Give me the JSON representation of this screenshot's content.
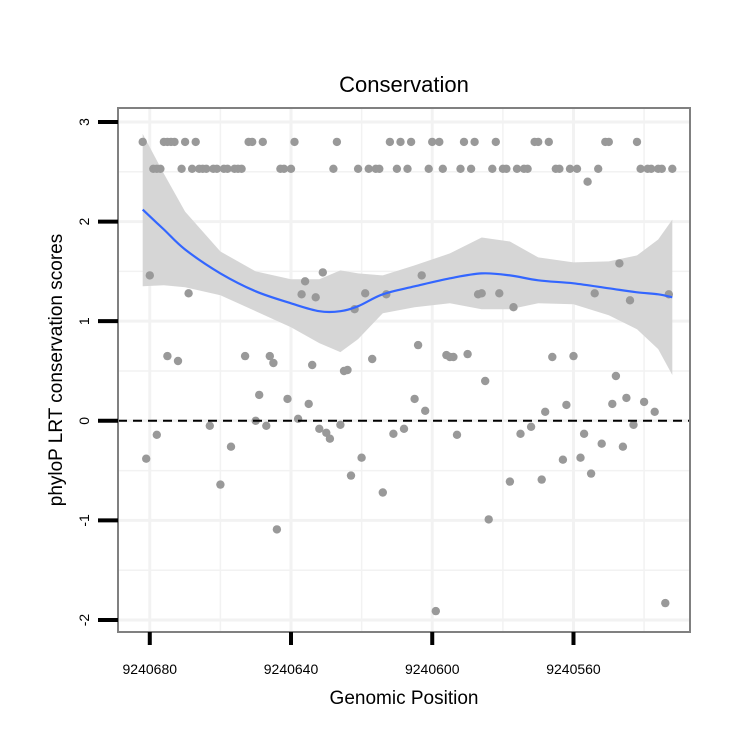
{
  "chart_data": {
    "type": "scatter",
    "title": "Conservation",
    "xlabel": "Genomic Position",
    "ylabel": "phyloP LRT conservation scores",
    "xlim": [
      9240527,
      9240689
    ],
    "ylim": [
      -2.12,
      3.14
    ],
    "x_reversed": true,
    "x_ticks": [
      9240680,
      9240640,
      9240600,
      9240560
    ],
    "x_tick_labels": [
      "9240680",
      "9240640",
      "9240600",
      "9240560"
    ],
    "y_ticks": [
      -2,
      -1,
      0,
      1,
      2,
      3
    ],
    "y_tick_labels": [
      "-2",
      "-1",
      "0",
      "1",
      "2",
      "3"
    ],
    "grid": true,
    "reference_line": {
      "y": 0,
      "style": "dashed"
    },
    "colors": {
      "points": "#999999",
      "smooth_line": "#3366ff",
      "ribbon": "#d4d4d4",
      "panel_border": "#808080",
      "grid": "#f2f2f2",
      "reference_line": "#000000"
    },
    "points": [
      [
        9240682,
        2.8
      ],
      [
        9240681,
        -0.38
      ],
      [
        9240680,
        1.46
      ],
      [
        9240679,
        2.53
      ],
      [
        9240678,
        -0.14
      ],
      [
        9240678,
        2.53
      ],
      [
        9240677,
        2.53
      ],
      [
        9240676,
        2.8
      ],
      [
        9240675,
        0.65
      ],
      [
        9240675,
        2.8
      ],
      [
        9240674,
        2.8
      ],
      [
        9240673,
        2.8
      ],
      [
        9240672,
        0.6
      ],
      [
        9240671,
        2.53
      ],
      [
        9240670,
        2.8
      ],
      [
        9240669,
        1.28
      ],
      [
        9240668,
        2.53
      ],
      [
        9240667,
        2.8
      ],
      [
        9240666,
        2.53
      ],
      [
        9240665,
        2.53
      ],
      [
        9240664,
        2.53
      ],
      [
        9240663,
        -0.05
      ],
      [
        9240662,
        2.53
      ],
      [
        9240661,
        2.53
      ],
      [
        9240660,
        -0.64
      ],
      [
        9240659,
        2.53
      ],
      [
        9240658,
        2.53
      ],
      [
        9240657,
        -0.26
      ],
      [
        9240656,
        2.53
      ],
      [
        9240655,
        2.53
      ],
      [
        9240654,
        2.53
      ],
      [
        9240653,
        0.65
      ],
      [
        9240652,
        2.8
      ],
      [
        9240651,
        2.8
      ],
      [
        9240650,
        0.0
      ],
      [
        9240649,
        0.26
      ],
      [
        9240648,
        2.8
      ],
      [
        9240647,
        -0.05
      ],
      [
        9240646,
        0.65
      ],
      [
        9240645,
        0.58
      ],
      [
        9240644,
        -1.09
      ],
      [
        9240643,
        2.53
      ],
      [
        9240642,
        2.53
      ],
      [
        9240641,
        0.22
      ],
      [
        9240640,
        2.53
      ],
      [
        9240639,
        2.8
      ],
      [
        9240638,
        0.02
      ],
      [
        9240637,
        1.27
      ],
      [
        9240636,
        1.4
      ],
      [
        9240635,
        0.17
      ],
      [
        9240634,
        0.56
      ],
      [
        9240633,
        1.24
      ],
      [
        9240632,
        -0.08
      ],
      [
        9240631,
        1.49
      ],
      [
        9240630,
        -0.12
      ],
      [
        9240629,
        -0.18
      ],
      [
        9240628,
        2.53
      ],
      [
        9240627,
        2.8
      ],
      [
        9240626,
        -0.04
      ],
      [
        9240625,
        0.5
      ],
      [
        9240624,
        0.51
      ],
      [
        9240623,
        -0.55
      ],
      [
        9240622,
        1.12
      ],
      [
        9240621,
        2.53
      ],
      [
        9240620,
        -0.37
      ],
      [
        9240619,
        1.28
      ],
      [
        9240618,
        2.53
      ],
      [
        9240617,
        0.62
      ],
      [
        9240616,
        2.53
      ],
      [
        9240615,
        2.53
      ],
      [
        9240614,
        -0.72
      ],
      [
        9240613,
        1.27
      ],
      [
        9240612,
        2.8
      ],
      [
        9240611,
        -0.13
      ],
      [
        9240610,
        2.53
      ],
      [
        9240609,
        2.8
      ],
      [
        9240608,
        -0.08
      ],
      [
        9240607,
        2.53
      ],
      [
        9240606,
        2.8
      ],
      [
        9240605,
        0.22
      ],
      [
        9240604,
        0.76
      ],
      [
        9240603,
        1.46
      ],
      [
        9240602,
        0.1
      ],
      [
        9240601,
        2.53
      ],
      [
        9240600,
        2.8
      ],
      [
        9240599,
        -1.91
      ],
      [
        9240598,
        2.8
      ],
      [
        9240597,
        2.53
      ],
      [
        9240596,
        0.66
      ],
      [
        9240595,
        0.64
      ],
      [
        9240594,
        0.64
      ],
      [
        9240593,
        -0.14
      ],
      [
        9240592,
        2.53
      ],
      [
        9240591,
        2.8
      ],
      [
        9240590,
        0.67
      ],
      [
        9240589,
        2.53
      ],
      [
        9240588,
        2.8
      ],
      [
        9240587,
        1.27
      ],
      [
        9240586,
        1.28
      ],
      [
        9240585,
        0.4
      ],
      [
        9240584,
        -0.99
      ],
      [
        9240583,
        2.53
      ],
      [
        9240582,
        2.8
      ],
      [
        9240581,
        1.28
      ],
      [
        9240580,
        2.53
      ],
      [
        9240579,
        2.53
      ],
      [
        9240578,
        -0.61
      ],
      [
        9240577,
        1.14
      ],
      [
        9240576,
        2.53
      ],
      [
        9240575,
        -0.13
      ],
      [
        9240574,
        2.53
      ],
      [
        9240573,
        2.53
      ],
      [
        9240572,
        -0.06
      ],
      [
        9240571,
        2.8
      ],
      [
        9240570,
        2.8
      ],
      [
        9240569,
        -0.59
      ],
      [
        9240568,
        0.09
      ],
      [
        9240567,
        2.8
      ],
      [
        9240566,
        0.64
      ],
      [
        9240565,
        2.53
      ],
      [
        9240564,
        2.53
      ],
      [
        9240563,
        -0.39
      ],
      [
        9240562,
        0.16
      ],
      [
        9240561,
        2.53
      ],
      [
        9240560,
        0.65
      ],
      [
        9240559,
        2.53
      ],
      [
        9240558,
        -0.37
      ],
      [
        9240557,
        -0.13
      ],
      [
        9240556,
        2.4
      ],
      [
        9240555,
        -0.53
      ],
      [
        9240554,
        1.28
      ],
      [
        9240553,
        2.53
      ],
      [
        9240552,
        -0.23
      ],
      [
        9240551,
        2.8
      ],
      [
        9240550,
        2.8
      ],
      [
        9240549,
        0.17
      ],
      [
        9240548,
        0.45
      ],
      [
        9240547,
        1.58
      ],
      [
        9240546,
        -0.26
      ],
      [
        9240545,
        0.23
      ],
      [
        9240544,
        1.21
      ],
      [
        9240543,
        -0.04
      ],
      [
        9240542,
        2.8
      ],
      [
        9240541,
        2.53
      ],
      [
        9240540,
        0.19
      ],
      [
        9240539,
        2.53
      ],
      [
        9240538,
        2.53
      ],
      [
        9240537,
        0.09
      ],
      [
        9240536,
        2.53
      ],
      [
        9240535,
        2.53
      ],
      [
        9240534,
        -1.83
      ],
      [
        9240533,
        1.27
      ],
      [
        9240532,
        2.53
      ]
    ],
    "smooth": [
      {
        "x": 9240682,
        "y": 2.12,
        "lo": 1.35,
        "hi": 2.88
      },
      {
        "x": 9240676,
        "y": 1.92,
        "lo": 1.36,
        "hi": 2.48
      },
      {
        "x": 9240670,
        "y": 1.72,
        "lo": 1.34,
        "hi": 2.1
      },
      {
        "x": 9240660,
        "y": 1.48,
        "lo": 1.26,
        "hi": 1.7
      },
      {
        "x": 9240650,
        "y": 1.3,
        "lo": 1.1,
        "hi": 1.5
      },
      {
        "x": 9240640,
        "y": 1.18,
        "lo": 0.94,
        "hi": 1.42
      },
      {
        "x": 9240632,
        "y": 1.1,
        "lo": 0.78,
        "hi": 1.42
      },
      {
        "x": 9240626,
        "y": 1.1,
        "lo": 0.69,
        "hi": 1.51
      },
      {
        "x": 9240621,
        "y": 1.15,
        "lo": 0.82,
        "hi": 1.48
      },
      {
        "x": 9240614,
        "y": 1.27,
        "lo": 1.08,
        "hi": 1.46
      },
      {
        "x": 9240605,
        "y": 1.35,
        "lo": 1.14,
        "hi": 1.56
      },
      {
        "x": 9240595,
        "y": 1.43,
        "lo": 1.18,
        "hi": 1.68
      },
      {
        "x": 9240586,
        "y": 1.48,
        "lo": 1.12,
        "hi": 1.84
      },
      {
        "x": 9240578,
        "y": 1.46,
        "lo": 1.12,
        "hi": 1.8
      },
      {
        "x": 9240570,
        "y": 1.41,
        "lo": 1.18,
        "hi": 1.64
      },
      {
        "x": 9240560,
        "y": 1.38,
        "lo": 1.17,
        "hi": 1.59
      },
      {
        "x": 9240550,
        "y": 1.33,
        "lo": 1.06,
        "hi": 1.6
      },
      {
        "x": 9240542,
        "y": 1.29,
        "lo": 0.92,
        "hi": 1.66
      },
      {
        "x": 9240536,
        "y": 1.27,
        "lo": 0.72,
        "hi": 1.82
      },
      {
        "x": 9240532,
        "y": 1.24,
        "lo": 0.46,
        "hi": 2.02
      }
    ]
  }
}
